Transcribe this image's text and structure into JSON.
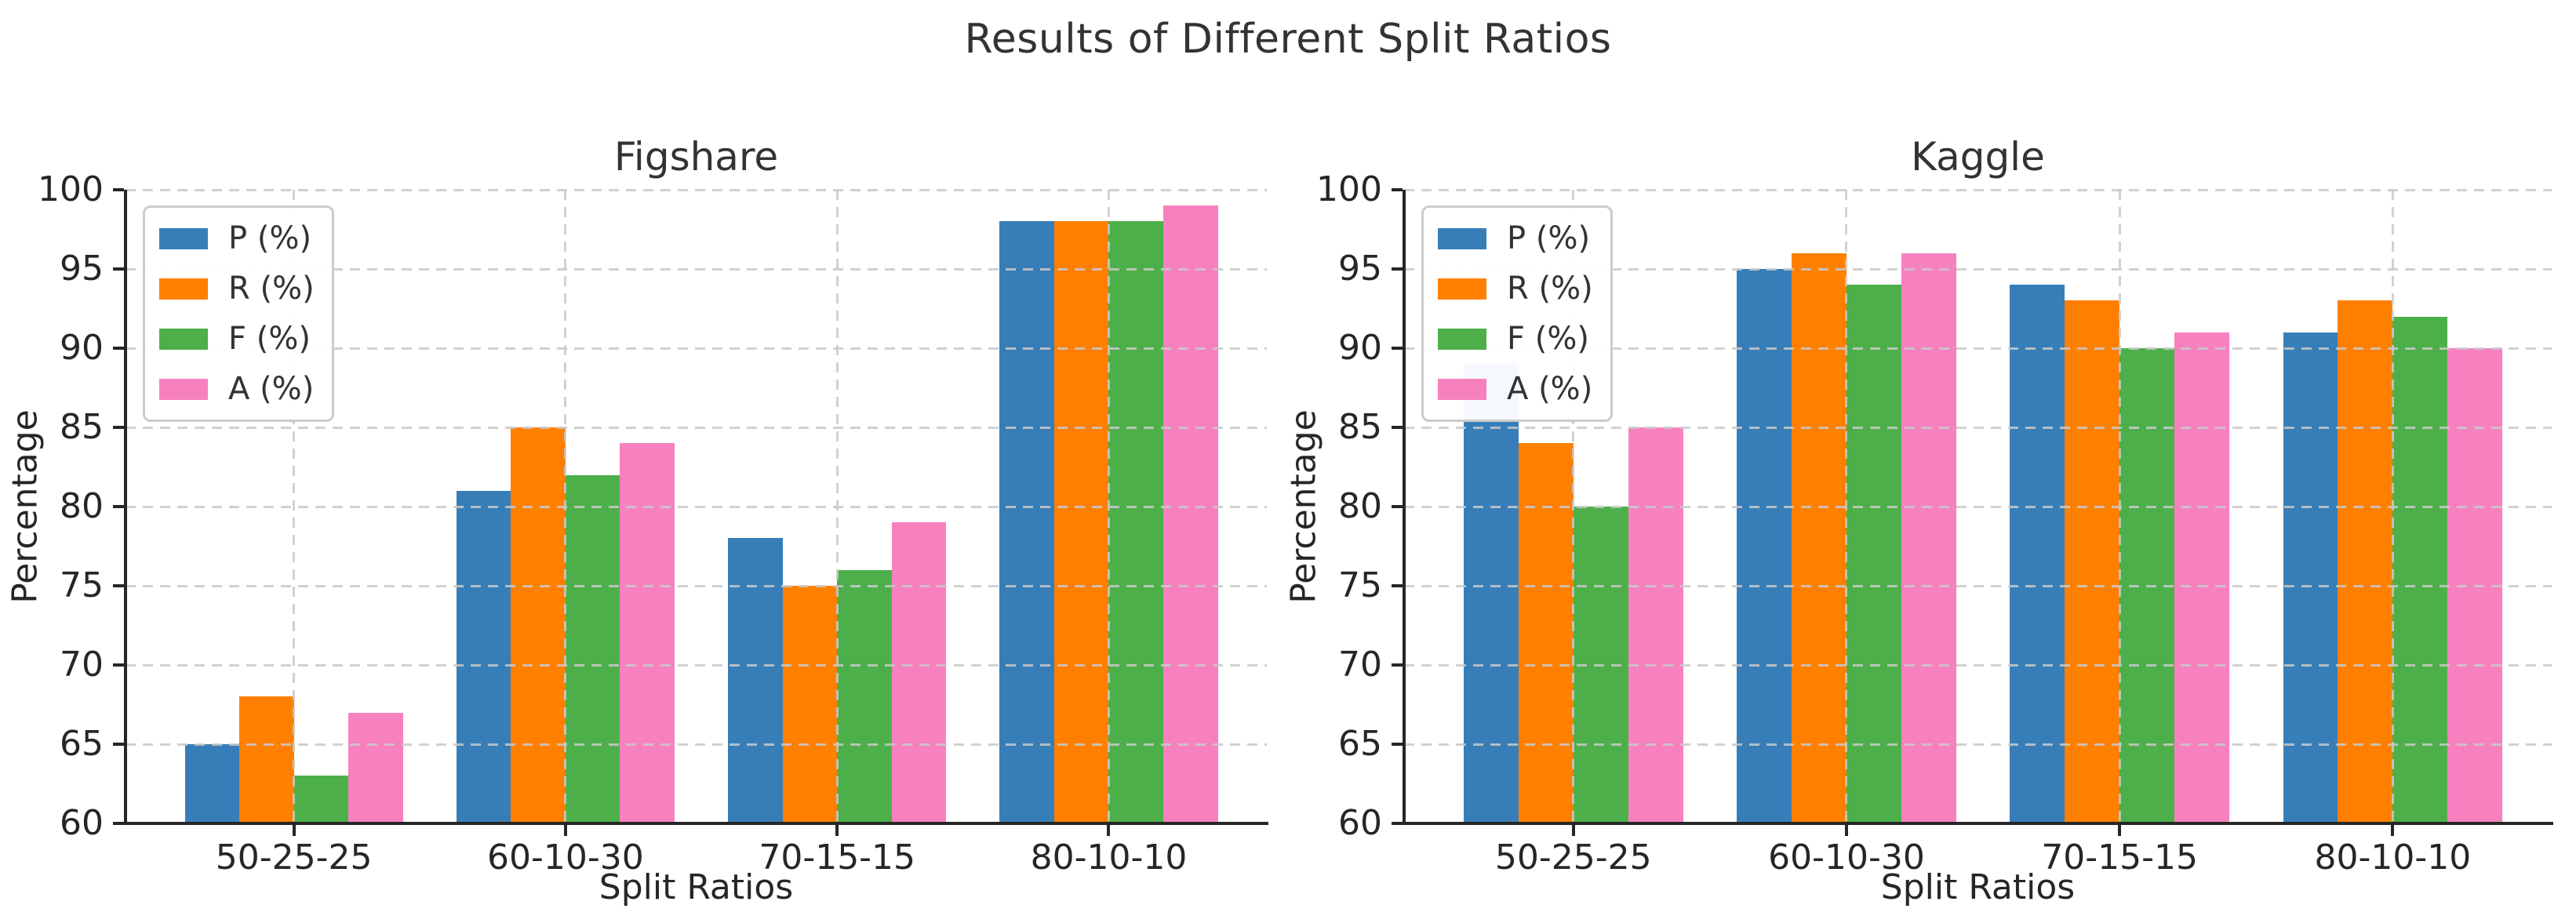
{
  "page": {
    "title": "Results of Different Split Ratios"
  },
  "colors": {
    "series_blue": "#377eb8",
    "series_orange": "#ff7f00",
    "series_green": "#4daf4a",
    "series_pink": "#f781bf",
    "grid": "#c9c9c9",
    "spine": "#262626",
    "title_text": "#333333",
    "tick_text": "#262626",
    "background": "#ffffff"
  },
  "chart_data": [
    {
      "type": "bar",
      "title": "Figshare",
      "xlabel": "Split Ratios",
      "ylabel": "Percentage",
      "categories": [
        "50-25-25",
        "60-10-30",
        "70-15-15",
        "80-10-10"
      ],
      "series": [
        {
          "name": "P (%)",
          "color": "#377eb8",
          "values": [
            65,
            81,
            78,
            98
          ]
        },
        {
          "name": "R (%)",
          "color": "#ff7f00",
          "values": [
            68,
            85,
            75,
            98
          ]
        },
        {
          "name": "F (%)",
          "color": "#4daf4a",
          "values": [
            63,
            82,
            76,
            98
          ]
        },
        {
          "name": "A (%)",
          "color": "#f781bf",
          "values": [
            67,
            84,
            79,
            99
          ]
        }
      ],
      "ylim": [
        60,
        100
      ],
      "ytick_step": 5,
      "yticks": [
        60,
        65,
        70,
        75,
        80,
        85,
        90,
        95,
        100
      ],
      "grid": true,
      "grid_style": "dashed",
      "legend_position": "upper left"
    },
    {
      "type": "bar",
      "title": "Kaggle",
      "xlabel": "Split Ratios",
      "ylabel": "Percentage",
      "categories": [
        "50-25-25",
        "60-10-30",
        "70-15-15",
        "80-10-10"
      ],
      "series": [
        {
          "name": "P (%)",
          "color": "#377eb8",
          "values": [
            89,
            95,
            94,
            91
          ]
        },
        {
          "name": "R (%)",
          "color": "#ff7f00",
          "values": [
            84,
            96,
            93,
            93
          ]
        },
        {
          "name": "F (%)",
          "color": "#4daf4a",
          "values": [
            80,
            94,
            90,
            92
          ]
        },
        {
          "name": "A (%)",
          "color": "#f781bf",
          "values": [
            85,
            96,
            91,
            90
          ]
        }
      ],
      "ylim": [
        60,
        100
      ],
      "ytick_step": 5,
      "yticks": [
        60,
        65,
        70,
        75,
        80,
        85,
        90,
        95,
        100
      ],
      "grid": true,
      "grid_style": "dashed",
      "legend_position": "upper left"
    }
  ]
}
